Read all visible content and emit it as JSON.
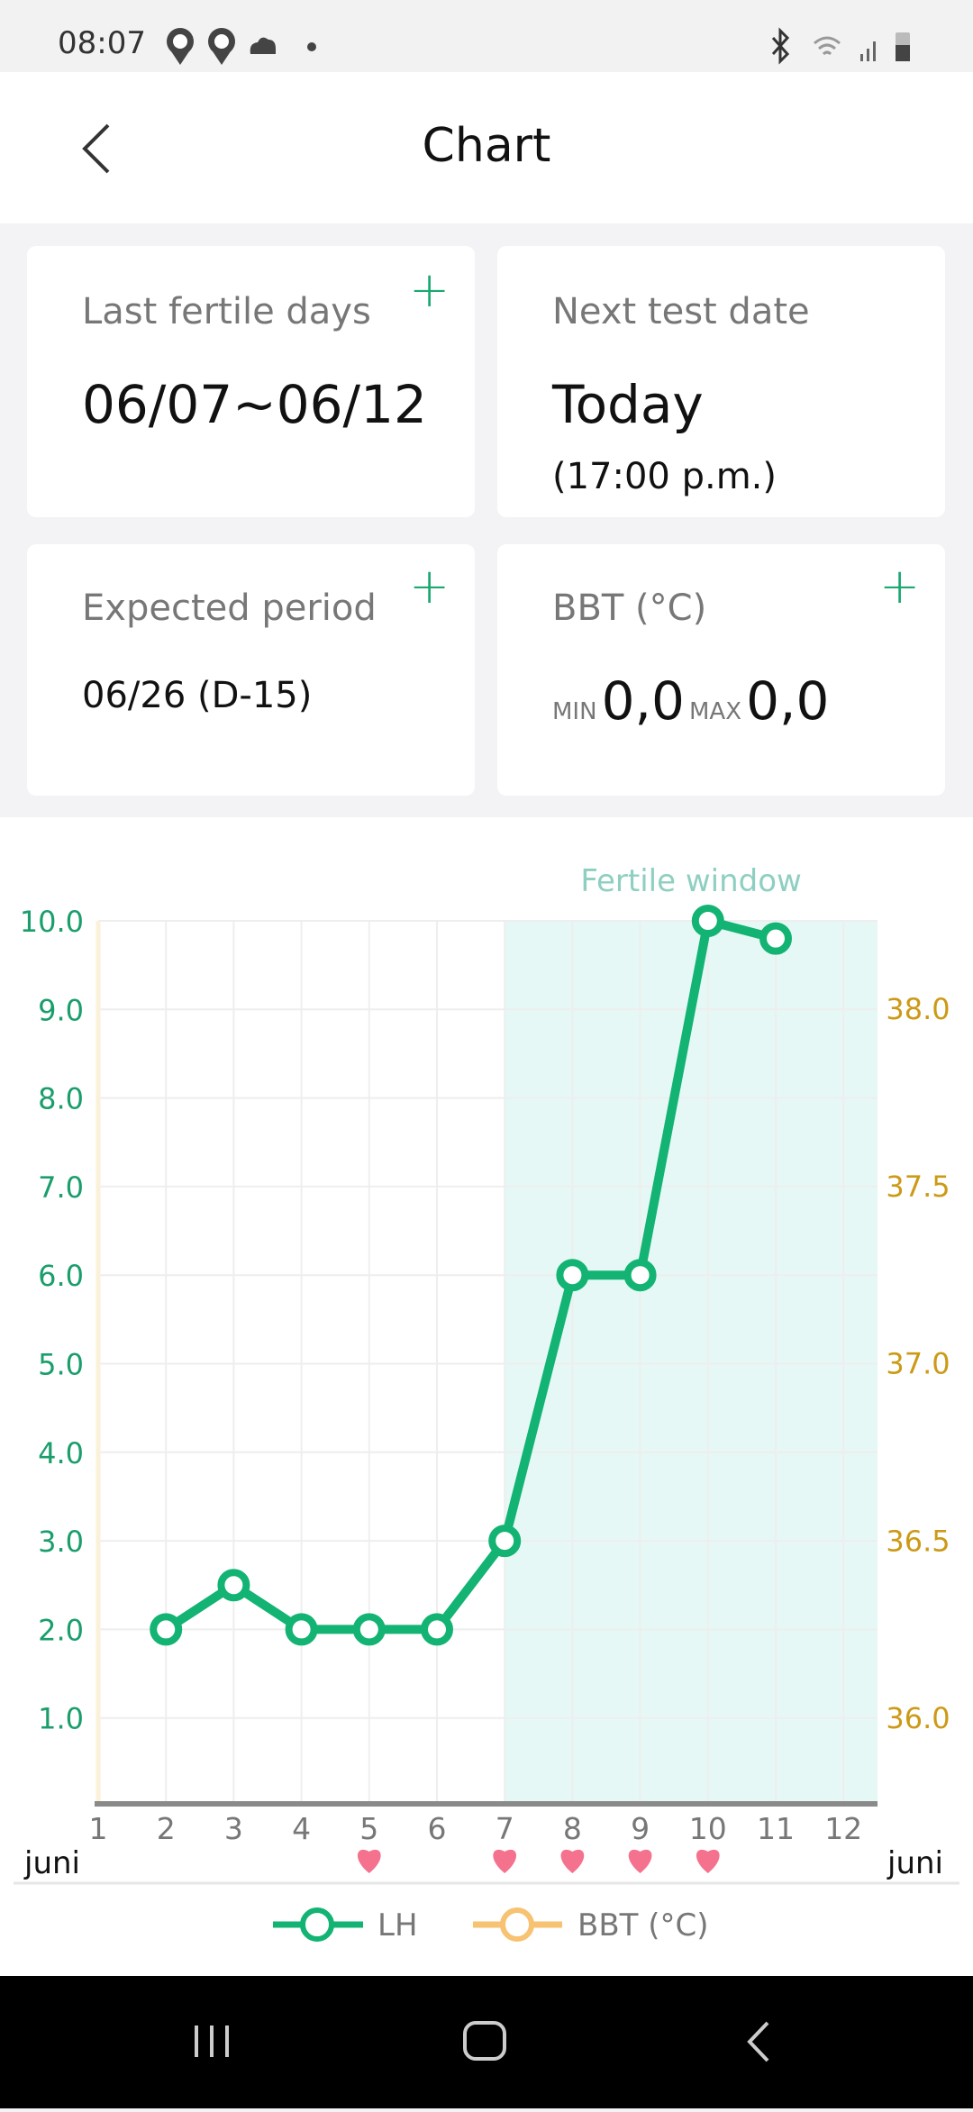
{
  "status_bar": {
    "time": "08:07",
    "icons": [
      "paw-location-icon",
      "paw-location-icon",
      "cloud-icon",
      "dot-icon",
      "bluetooth-icon",
      "wifi-icon",
      "signal-icon",
      "battery-icon"
    ]
  },
  "header": {
    "title": "Chart",
    "back_icon": "chevron-left-icon"
  },
  "cards": {
    "fertile": {
      "label": "Last fertile days",
      "value": "06/07~06/12"
    },
    "next_test": {
      "label": "Next test date",
      "value": "Today",
      "sub": "(17:00 p.m.)"
    },
    "period": {
      "label": "Expected period",
      "value": "06/26 (D-15)"
    },
    "bbt": {
      "label": "BBT (°C)",
      "min_label": "MIN",
      "min_value": "0,0",
      "max_label": "MAX",
      "max_value": "0,0"
    }
  },
  "colors": {
    "lh": "#13b374",
    "bbt": "#f7c272",
    "fertile_band": "#e5f8f5",
    "fertile_text": "#8ecfc2",
    "left_axis": "#1a9e6b",
    "right_axis": "#cc9a16",
    "heart": "#f4728d",
    "accent": "#1aa870"
  },
  "chart_data": {
    "type": "line",
    "x": [
      1,
      2,
      3,
      4,
      5,
      6,
      7,
      8,
      9,
      10,
      11,
      12
    ],
    "x_tick_labels": [
      "1",
      "2",
      "3",
      "4",
      "5",
      "6",
      "7",
      "8",
      "9",
      "10",
      "11",
      "12"
    ],
    "x_month_label_left": "juni",
    "x_month_label_right": "juni",
    "y_left_ticks": [
      "1.0",
      "2.0",
      "3.0",
      "4.0",
      "5.0",
      "6.0",
      "7.0",
      "8.0",
      "9.0",
      "10.0"
    ],
    "y_left_range": [
      0,
      10
    ],
    "y_right_ticks": [
      "36.0",
      "36.5",
      "37.0",
      "37.5",
      "38.0"
    ],
    "y_right_range": [
      35.75,
      38.25
    ],
    "fertile_window": {
      "label": "Fertile window",
      "from": 7,
      "to": 12.5
    },
    "hearts_days": [
      5,
      7,
      8,
      9,
      10
    ],
    "grid": true,
    "legend_position": "bottom",
    "series": [
      {
        "name": "LH",
        "axis": "left",
        "points": [
          [
            2,
            2.0
          ],
          [
            3,
            2.5
          ],
          [
            4,
            2.0
          ],
          [
            5,
            2.0
          ],
          [
            6,
            2.0
          ],
          [
            7,
            3.0
          ],
          [
            8,
            6.0
          ],
          [
            9,
            6.0
          ],
          [
            10,
            10.0
          ],
          [
            11,
            9.8
          ]
        ]
      },
      {
        "name": "BBT (°C)",
        "axis": "right",
        "points": []
      }
    ]
  }
}
